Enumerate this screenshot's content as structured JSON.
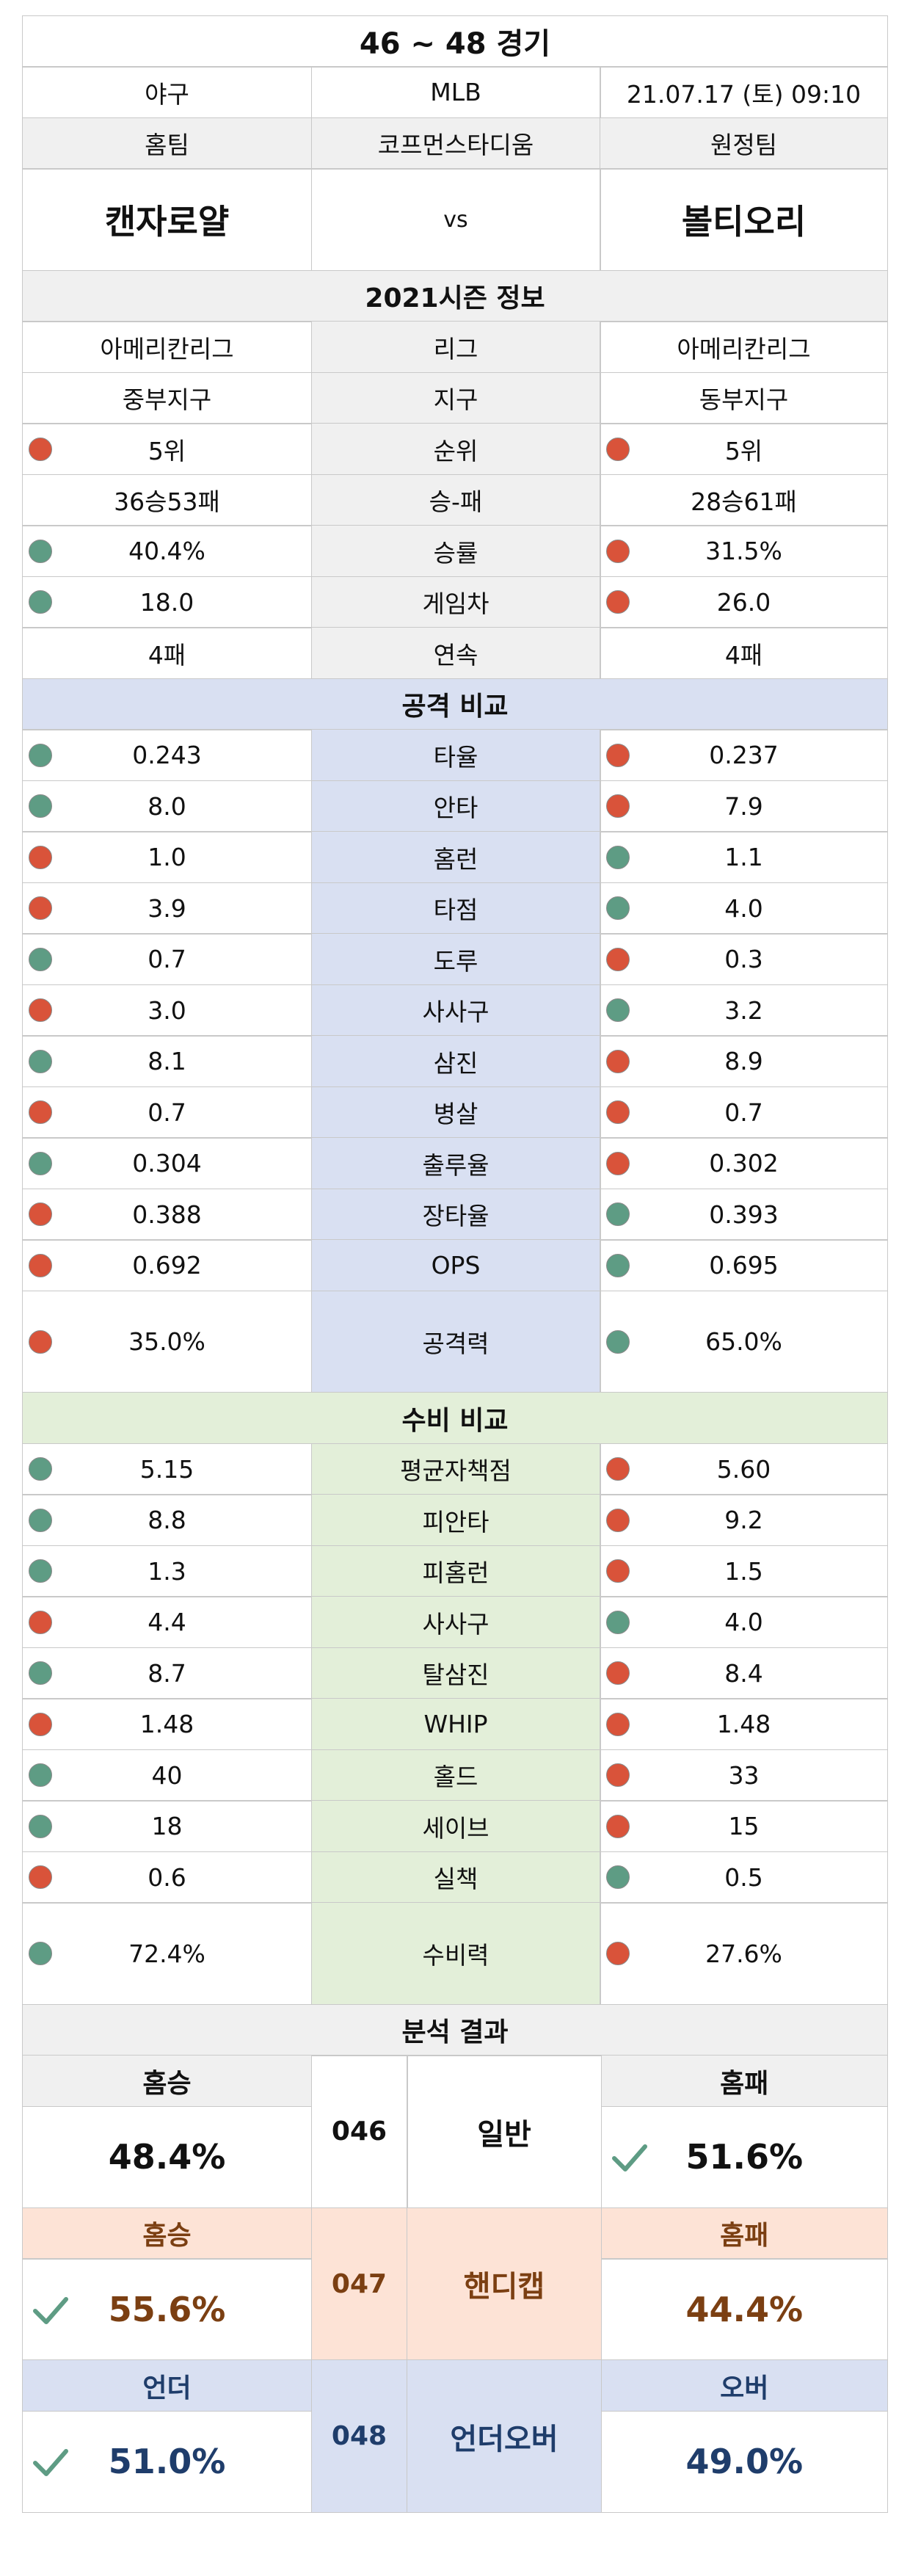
{
  "header": {
    "title": "46 ~ 48 경기",
    "sport": "야구",
    "league": "MLB",
    "datetime": "21.07.17 (토) 09:10",
    "home_label": "홈팀",
    "stadium": "코프먼스타디움",
    "away_label": "원정팀",
    "home_team": "캔자로얄",
    "vs": "vs",
    "away_team": "볼티오리"
  },
  "season": {
    "title": "2021시즌 정보",
    "rows": [
      {
        "label": "리그",
        "home": "아메리칸리그",
        "away": "아메리칸리그",
        "home_dot": "",
        "away_dot": ""
      },
      {
        "label": "지구",
        "home": "중부지구",
        "away": "동부지구",
        "home_dot": "",
        "away_dot": ""
      },
      {
        "label": "순위",
        "home": "5위",
        "away": "5위",
        "home_dot": "red",
        "away_dot": "red"
      },
      {
        "label": "승-패",
        "home": "36승53패",
        "away": "28승61패",
        "home_dot": "",
        "away_dot": ""
      },
      {
        "label": "승률",
        "home": "40.4%",
        "away": "31.5%",
        "home_dot": "green",
        "away_dot": "red"
      },
      {
        "label": "게임차",
        "home": "18.0",
        "away": "26.0",
        "home_dot": "green",
        "away_dot": "red"
      },
      {
        "label": "연속",
        "home": "4패",
        "away": "4패",
        "home_dot": "",
        "away_dot": ""
      }
    ]
  },
  "attack": {
    "title": "공격 비교",
    "rows": [
      {
        "label": "타율",
        "home": "0.243",
        "away": "0.237",
        "home_dot": "green",
        "away_dot": "red"
      },
      {
        "label": "안타",
        "home": "8.0",
        "away": "7.9",
        "home_dot": "green",
        "away_dot": "red"
      },
      {
        "label": "홈런",
        "home": "1.0",
        "away": "1.1",
        "home_dot": "red",
        "away_dot": "green"
      },
      {
        "label": "타점",
        "home": "3.9",
        "away": "4.0",
        "home_dot": "red",
        "away_dot": "green"
      },
      {
        "label": "도루",
        "home": "0.7",
        "away": "0.3",
        "home_dot": "green",
        "away_dot": "red"
      },
      {
        "label": "사사구",
        "home": "3.0",
        "away": "3.2",
        "home_dot": "red",
        "away_dot": "green"
      },
      {
        "label": "삼진",
        "home": "8.1",
        "away": "8.9",
        "home_dot": "green",
        "away_dot": "red"
      },
      {
        "label": "병살",
        "home": "0.7",
        "away": "0.7",
        "home_dot": "red",
        "away_dot": "red"
      },
      {
        "label": "출루율",
        "home": "0.304",
        "away": "0.302",
        "home_dot": "green",
        "away_dot": "red"
      },
      {
        "label": "장타율",
        "home": "0.388",
        "away": "0.393",
        "home_dot": "red",
        "away_dot": "green"
      },
      {
        "label": "OPS",
        "home": "0.692",
        "away": "0.695",
        "home_dot": "red",
        "away_dot": "green"
      }
    ],
    "power": {
      "label": "공격력",
      "home": "35.0%",
      "away": "65.0%",
      "home_dot": "red",
      "away_dot": "green"
    }
  },
  "defense": {
    "title": "수비 비교",
    "rows": [
      {
        "label": "평균자책점",
        "home": "5.15",
        "away": "5.60",
        "home_dot": "green",
        "away_dot": "red"
      },
      {
        "label": "피안타",
        "home": "8.8",
        "away": "9.2",
        "home_dot": "green",
        "away_dot": "red"
      },
      {
        "label": "피홈런",
        "home": "1.3",
        "away": "1.5",
        "home_dot": "green",
        "away_dot": "red"
      },
      {
        "label": "사사구",
        "home": "4.4",
        "away": "4.0",
        "home_dot": "red",
        "away_dot": "green"
      },
      {
        "label": "탈삼진",
        "home": "8.7",
        "away": "8.4",
        "home_dot": "green",
        "away_dot": "red"
      },
      {
        "label": "WHIP",
        "home": "1.48",
        "away": "1.48",
        "home_dot": "red",
        "away_dot": "red"
      },
      {
        "label": "홀드",
        "home": "40",
        "away": "33",
        "home_dot": "green",
        "away_dot": "red"
      },
      {
        "label": "세이브",
        "home": "18",
        "away": "15",
        "home_dot": "green",
        "away_dot": "red"
      },
      {
        "label": "실책",
        "home": "0.6",
        "away": "0.5",
        "home_dot": "red",
        "away_dot": "green"
      }
    ],
    "power": {
      "label": "수비력",
      "home": "72.4%",
      "away": "27.6%",
      "home_dot": "green",
      "away_dot": "red"
    }
  },
  "analysis": {
    "title": "분석 결과",
    "normal": {
      "home_label": "홈승",
      "home_pct": "48.4%",
      "code": "046",
      "type": "일반",
      "away_label": "홈패",
      "away_pct": "51.6%"
    },
    "handicap": {
      "home_label": "홈승",
      "home_pct": "55.6%",
      "code": "047",
      "type": "핸디캡",
      "away_label": "홈패",
      "away_pct": "44.4%"
    },
    "underover": {
      "home_label": "언더",
      "home_pct": "51.0%",
      "code": "048",
      "type": "언더오버",
      "away_label": "오버",
      "away_pct": "49.0%"
    }
  },
  "colors": {
    "red_dot": "#d9533a",
    "green_dot": "#5e9c84",
    "blue_bg": "#d9e0f2",
    "green_bg": "#e3efd9",
    "orange_bg": "#fde3d6",
    "gray_bg": "#f0f0f0"
  }
}
